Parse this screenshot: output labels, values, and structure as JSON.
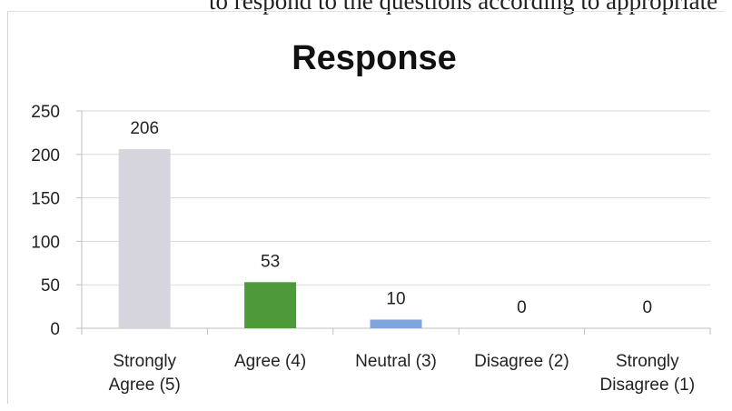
{
  "page_text": "to respond to the questions according to appropriate",
  "chart_data": {
    "type": "bar",
    "title": "Response",
    "xlabel": "",
    "ylabel": "",
    "categories": [
      [
        "Strongly",
        "Agree (5)"
      ],
      [
        "Agree (4)"
      ],
      [
        "Neutral (3)"
      ],
      [
        "Disagree (2)"
      ],
      [
        "Strongly",
        "Disagree (1)"
      ]
    ],
    "values": [
      206,
      53,
      10,
      0,
      0
    ],
    "data_labels": [
      "206",
      "53",
      "10",
      "0",
      "0"
    ],
    "bar_colors": [
      "#d6d5dd",
      "#4e9a3a",
      "#7fa6dc",
      "#c8c8c8",
      "#c8c8c8"
    ],
    "ylim": [
      0,
      250
    ],
    "yticks": [
      0,
      50,
      100,
      150,
      200,
      250
    ],
    "grid": true,
    "legend": "none"
  }
}
